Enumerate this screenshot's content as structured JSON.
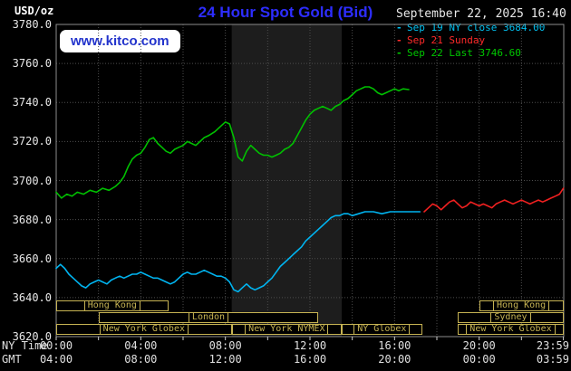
{
  "header": {
    "unit": "USD/oz",
    "title": "24 Hour Spot Gold (Bid)",
    "datetime": "September 22, 2025 16:40",
    "watermark": "www.kitco.com"
  },
  "colors": {
    "title": "#2d2dff",
    "watermark_text": "#2233cc",
    "session_box": "#c6b353",
    "highlight_band": "#1d1d1d",
    "grid": "#4d4d4d",
    "plot_border": "#8c8c8c",
    "tick": "#cccccc"
  },
  "legend": [
    {
      "label": "Sep 19 NY close 3684.00",
      "color": "#00c0f0"
    },
    {
      "label": "Sep 21 Sunday",
      "color": "#ff2a2a"
    },
    {
      "label": "Sep 22 Last 3746.60",
      "color": "#00c800"
    }
  ],
  "axes": {
    "y_ticks": [
      "3780.0",
      "3760.0",
      "3740.0",
      "3720.0",
      "3700.0",
      "3680.0",
      "3660.0",
      "3640.0",
      "3620.0"
    ],
    "x_row1_label": "NY Time",
    "x_row2_label": "GMT",
    "x_row1": [
      "00:00",
      "04:00",
      "08:00",
      "12:00",
      "16:00",
      "20:00",
      "23:59"
    ],
    "x_row2": [
      "04:00",
      "08:00",
      "12:00",
      "16:00",
      "20:00",
      "00:00",
      "03:59"
    ],
    "x_tick_hours": [
      0,
      4,
      8,
      12,
      16,
      20,
      23.983
    ]
  },
  "sessions": [
    {
      "row": 0,
      "start": 0,
      "end": 5.3,
      "label": "Hong Kong"
    },
    {
      "row": 0,
      "start": 20.0,
      "end": 23.983,
      "label": "Hong Kong"
    },
    {
      "row": 1,
      "start": 2.0,
      "end": 12.4,
      "label": "London"
    },
    {
      "row": 1,
      "start": 19.0,
      "end": 23.983,
      "label": "Sydney"
    },
    {
      "row": 2,
      "start": 0,
      "end": 8.3,
      "label": "New York Globex"
    },
    {
      "row": 2,
      "start": 8.3,
      "end": 13.5,
      "label": "New York NYMEX"
    },
    {
      "row": 2,
      "start": 13.5,
      "end": 17.3,
      "label": "NY Globex"
    },
    {
      "row": 2,
      "start": 19.0,
      "end": 23.983,
      "label": "New York Globex"
    }
  ],
  "chart_data": {
    "type": "line",
    "title": "24 Hour Spot Gold (Bid)",
    "ylabel": "USD/oz",
    "xlabel": "NY Time (hours 00:00-23:59)",
    "ylim": [
      3620,
      3780
    ],
    "xlim": [
      0,
      24
    ],
    "grid": true,
    "legend_position": "top-right",
    "highlight_band_hours": [
      8.3,
      13.5
    ],
    "series": [
      {
        "name": "Sep 19 NY close 3684.00",
        "color": "#00b4f0",
        "points": [
          [
            0,
            3655
          ],
          [
            0.2,
            3657
          ],
          [
            0.4,
            3655
          ],
          [
            0.6,
            3652
          ],
          [
            0.8,
            3650
          ],
          [
            1,
            3648
          ],
          [
            1.2,
            3646
          ],
          [
            1.4,
            3645
          ],
          [
            1.6,
            3647
          ],
          [
            1.8,
            3648
          ],
          [
            2,
            3649
          ],
          [
            2.2,
            3648
          ],
          [
            2.4,
            3647
          ],
          [
            2.6,
            3649
          ],
          [
            2.8,
            3650
          ],
          [
            3,
            3651
          ],
          [
            3.2,
            3650
          ],
          [
            3.4,
            3651
          ],
          [
            3.6,
            3652
          ],
          [
            3.8,
            3652
          ],
          [
            4,
            3653
          ],
          [
            4.2,
            3652
          ],
          [
            4.4,
            3651
          ],
          [
            4.6,
            3650
          ],
          [
            4.8,
            3650
          ],
          [
            5,
            3649
          ],
          [
            5.2,
            3648
          ],
          [
            5.4,
            3647
          ],
          [
            5.6,
            3648
          ],
          [
            5.8,
            3650
          ],
          [
            6,
            3652
          ],
          [
            6.2,
            3653
          ],
          [
            6.4,
            3652
          ],
          [
            6.6,
            3652
          ],
          [
            6.8,
            3653
          ],
          [
            7,
            3654
          ],
          [
            7.2,
            3653
          ],
          [
            7.4,
            3652
          ],
          [
            7.6,
            3651
          ],
          [
            7.8,
            3651
          ],
          [
            8,
            3650
          ],
          [
            8.2,
            3648
          ],
          [
            8.4,
            3644
          ],
          [
            8.6,
            3643
          ],
          [
            8.8,
            3645
          ],
          [
            9,
            3647
          ],
          [
            9.2,
            3645
          ],
          [
            9.4,
            3644
          ],
          [
            9.6,
            3645
          ],
          [
            9.8,
            3646
          ],
          [
            10,
            3648
          ],
          [
            10.2,
            3650
          ],
          [
            10.4,
            3653
          ],
          [
            10.6,
            3656
          ],
          [
            10.8,
            3658
          ],
          [
            11,
            3660
          ],
          [
            11.2,
            3662
          ],
          [
            11.4,
            3664
          ],
          [
            11.6,
            3666
          ],
          [
            11.8,
            3669
          ],
          [
            12,
            3671
          ],
          [
            12.2,
            3673
          ],
          [
            12.4,
            3675
          ],
          [
            12.6,
            3677
          ],
          [
            12.8,
            3679
          ],
          [
            13,
            3681
          ],
          [
            13.2,
            3682
          ],
          [
            13.4,
            3682
          ],
          [
            13.6,
            3683
          ],
          [
            13.8,
            3683
          ],
          [
            14,
            3682
          ],
          [
            14.3,
            3683
          ],
          [
            14.6,
            3684
          ],
          [
            15,
            3684
          ],
          [
            15.4,
            3683
          ],
          [
            15.8,
            3684
          ],
          [
            16.2,
            3684
          ],
          [
            16.6,
            3684
          ],
          [
            17,
            3684
          ],
          [
            17.2,
            3684
          ]
        ]
      },
      {
        "name": "Sep 21 Sunday",
        "color": "#f02020",
        "points": [
          [
            17.4,
            3684
          ],
          [
            17.6,
            3686
          ],
          [
            17.8,
            3688
          ],
          [
            18,
            3687
          ],
          [
            18.2,
            3685
          ],
          [
            18.4,
            3687
          ],
          [
            18.6,
            3689
          ],
          [
            18.8,
            3690
          ],
          [
            19,
            3688
          ],
          [
            19.2,
            3686
          ],
          [
            19.4,
            3687
          ],
          [
            19.6,
            3689
          ],
          [
            19.8,
            3688
          ],
          [
            20,
            3687
          ],
          [
            20.2,
            3688
          ],
          [
            20.4,
            3687
          ],
          [
            20.6,
            3686
          ],
          [
            20.8,
            3688
          ],
          [
            21,
            3689
          ],
          [
            21.2,
            3690
          ],
          [
            21.4,
            3689
          ],
          [
            21.6,
            3688
          ],
          [
            21.8,
            3689
          ],
          [
            22,
            3690
          ],
          [
            22.2,
            3689
          ],
          [
            22.4,
            3688
          ],
          [
            22.6,
            3689
          ],
          [
            22.8,
            3690
          ],
          [
            23,
            3689
          ],
          [
            23.2,
            3690
          ],
          [
            23.4,
            3691
          ],
          [
            23.6,
            3692
          ],
          [
            23.8,
            3693
          ],
          [
            23.983,
            3696
          ]
        ]
      },
      {
        "name": "Sep 22 Last 3746.60",
        "color": "#00c000",
        "points": [
          [
            0,
            3694
          ],
          [
            0.25,
            3691
          ],
          [
            0.5,
            3693
          ],
          [
            0.75,
            3692
          ],
          [
            1,
            3694
          ],
          [
            1.3,
            3693
          ],
          [
            1.6,
            3695
          ],
          [
            1.9,
            3694
          ],
          [
            2.2,
            3696
          ],
          [
            2.5,
            3695
          ],
          [
            2.8,
            3697
          ],
          [
            3,
            3699
          ],
          [
            3.2,
            3702
          ],
          [
            3.4,
            3707
          ],
          [
            3.6,
            3711
          ],
          [
            3.8,
            3713
          ],
          [
            4,
            3714
          ],
          [
            4.2,
            3717
          ],
          [
            4.4,
            3721
          ],
          [
            4.6,
            3722
          ],
          [
            4.8,
            3719
          ],
          [
            5,
            3717
          ],
          [
            5.2,
            3715
          ],
          [
            5.4,
            3714
          ],
          [
            5.6,
            3716
          ],
          [
            5.8,
            3717
          ],
          [
            6,
            3718
          ],
          [
            6.2,
            3720
          ],
          [
            6.4,
            3719
          ],
          [
            6.6,
            3718
          ],
          [
            6.8,
            3720
          ],
          [
            7,
            3722
          ],
          [
            7.2,
            3723
          ],
          [
            7.5,
            3725
          ],
          [
            7.8,
            3728
          ],
          [
            8,
            3730
          ],
          [
            8.2,
            3729
          ],
          [
            8.4,
            3722
          ],
          [
            8.6,
            3712
          ],
          [
            8.8,
            3710
          ],
          [
            9,
            3715
          ],
          [
            9.2,
            3718
          ],
          [
            9.4,
            3716
          ],
          [
            9.6,
            3714
          ],
          [
            9.8,
            3713
          ],
          [
            10,
            3713
          ],
          [
            10.2,
            3712
          ],
          [
            10.4,
            3713
          ],
          [
            10.6,
            3714
          ],
          [
            10.8,
            3716
          ],
          [
            11,
            3717
          ],
          [
            11.2,
            3719
          ],
          [
            11.4,
            3723
          ],
          [
            11.6,
            3727
          ],
          [
            11.8,
            3731
          ],
          [
            12,
            3734
          ],
          [
            12.2,
            3736
          ],
          [
            12.4,
            3737
          ],
          [
            12.6,
            3738
          ],
          [
            12.8,
            3737
          ],
          [
            13,
            3736
          ],
          [
            13.2,
            3738
          ],
          [
            13.4,
            3739
          ],
          [
            13.6,
            3741
          ],
          [
            13.8,
            3742
          ],
          [
            14,
            3744
          ],
          [
            14.2,
            3746
          ],
          [
            14.4,
            3747
          ],
          [
            14.6,
            3748
          ],
          [
            14.8,
            3748
          ],
          [
            15,
            3747
          ],
          [
            15.2,
            3745
          ],
          [
            15.4,
            3744
          ],
          [
            15.6,
            3745
          ],
          [
            15.8,
            3746
          ],
          [
            16,
            3747
          ],
          [
            16.2,
            3746
          ],
          [
            16.4,
            3747
          ],
          [
            16.67,
            3746.6
          ]
        ]
      }
    ]
  }
}
